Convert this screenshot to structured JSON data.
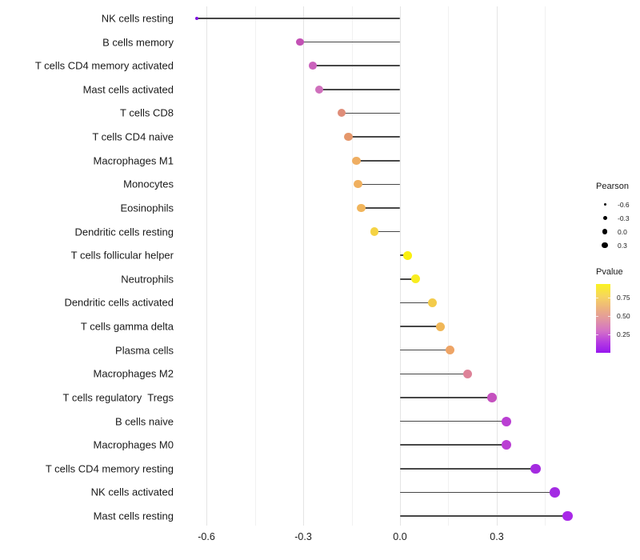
{
  "chart_data": {
    "type": "scatter",
    "variant": "lollipop",
    "title": "",
    "xlabel": "",
    "ylabel": "",
    "xlim": [
      -0.69,
      0.558
    ],
    "x_ticks": [
      -0.6,
      -0.3,
      0.0,
      0.3
    ],
    "x_tick_labels": [
      "-0.6",
      "-0.3",
      "0.0",
      "0.3"
    ],
    "grid": {
      "on": true,
      "major_x": [
        -0.6,
        -0.3,
        0.0,
        0.3
      ],
      "minor_x": [
        -0.45,
        -0.15,
        0.15,
        0.45
      ]
    },
    "points": [
      {
        "label": "NK cells resting",
        "pearson": -0.63,
        "color": "#8012E2",
        "diameter": 4
      },
      {
        "label": "B cells memory",
        "pearson": -0.31,
        "color": "#C351B5",
        "diameter": 9.5
      },
      {
        "label": "T cells CD4 memory activated",
        "pearson": -0.27,
        "color": "#CA62BC",
        "diameter": 9.8
      },
      {
        "label": "Mast cells activated",
        "pearson": -0.25,
        "color": "#CF70BC",
        "diameter": 9.9
      },
      {
        "label": "T cells CD8",
        "pearson": -0.18,
        "color": "#DF8D79",
        "diameter": 10
      },
      {
        "label": "T cells CD4 naive",
        "pearson": -0.16,
        "color": "#E5976B",
        "diameter": 10.1
      },
      {
        "label": "Macrophages M1",
        "pearson": -0.135,
        "color": "#EFAE62",
        "diameter": 10.2
      },
      {
        "label": "Monocytes",
        "pearson": -0.13,
        "color": "#F0B05F",
        "diameter": 10.2
      },
      {
        "label": "Eosinophils",
        "pearson": -0.12,
        "color": "#F1B55C",
        "diameter": 10.3
      },
      {
        "label": "Dendritic cells resting",
        "pearson": -0.08,
        "color": "#F5D344",
        "diameter": 10.4
      },
      {
        "label": "T cells follicular helper",
        "pearson": 0.023,
        "color": "#FAF00F",
        "diameter": 10.8
      },
      {
        "label": "Neutrophils",
        "pearson": 0.048,
        "color": "#F8ED20",
        "diameter": 10.9
      },
      {
        "label": "Dendritic cells activated",
        "pearson": 0.1,
        "color": "#F3CB4A",
        "diameter": 11
      },
      {
        "label": "T cells gamma delta",
        "pearson": 0.125,
        "color": "#F0B757",
        "diameter": 11.1
      },
      {
        "label": "Plasma cells",
        "pearson": 0.155,
        "color": "#EEA466",
        "diameter": 11.2
      },
      {
        "label": "Macrophages M2",
        "pearson": 0.21,
        "color": "#DD8298",
        "diameter": 11.5
      },
      {
        "label": "T cells regulatory  Tregs",
        "pearson": 0.285,
        "color": "#C551BF",
        "diameter": 11.8
      },
      {
        "label": "B cells naive",
        "pearson": 0.33,
        "color": "#BA3FD3",
        "diameter": 12
      },
      {
        "label": "Macrophages M0",
        "pearson": 0.33,
        "color": "#BA3FD3",
        "diameter": 12
      },
      {
        "label": "T cells CD4 memory resting",
        "pearson": 0.42,
        "color": "#A42BE0",
        "diameter": 12.3
      },
      {
        "label": "NK cells activated",
        "pearson": 0.48,
        "color": "#A32BE3",
        "diameter": 12.5
      },
      {
        "label": "Mast cells resting",
        "pearson": 0.52,
        "color": "#A928E8",
        "diameter": 12.7
      }
    ],
    "legend": {
      "position": "right",
      "size": {
        "title": "Pearson",
        "entries": [
          {
            "label": "-0.6",
            "diameter": 3
          },
          {
            "label": "-0.3",
            "diameter": 5
          },
          {
            "label": "0.0",
            "diameter": 6.5
          },
          {
            "label": "0.3",
            "diameter": 7.5
          }
        ]
      },
      "color": {
        "title": "Pvalue",
        "tick_labels": [
          "0.75",
          "0.50",
          "0.25"
        ],
        "gradient_stops": [
          {
            "pos": 0,
            "color": "#FAF321"
          },
          {
            "pos": 18,
            "color": "#F6D55F"
          },
          {
            "pos": 35,
            "color": "#EDB37E"
          },
          {
            "pos": 52,
            "color": "#E195A2"
          },
          {
            "pos": 68,
            "color": "#D472C6"
          },
          {
            "pos": 85,
            "color": "#B53BE2"
          },
          {
            "pos": 100,
            "color": "#9717EE"
          }
        ]
      }
    }
  }
}
